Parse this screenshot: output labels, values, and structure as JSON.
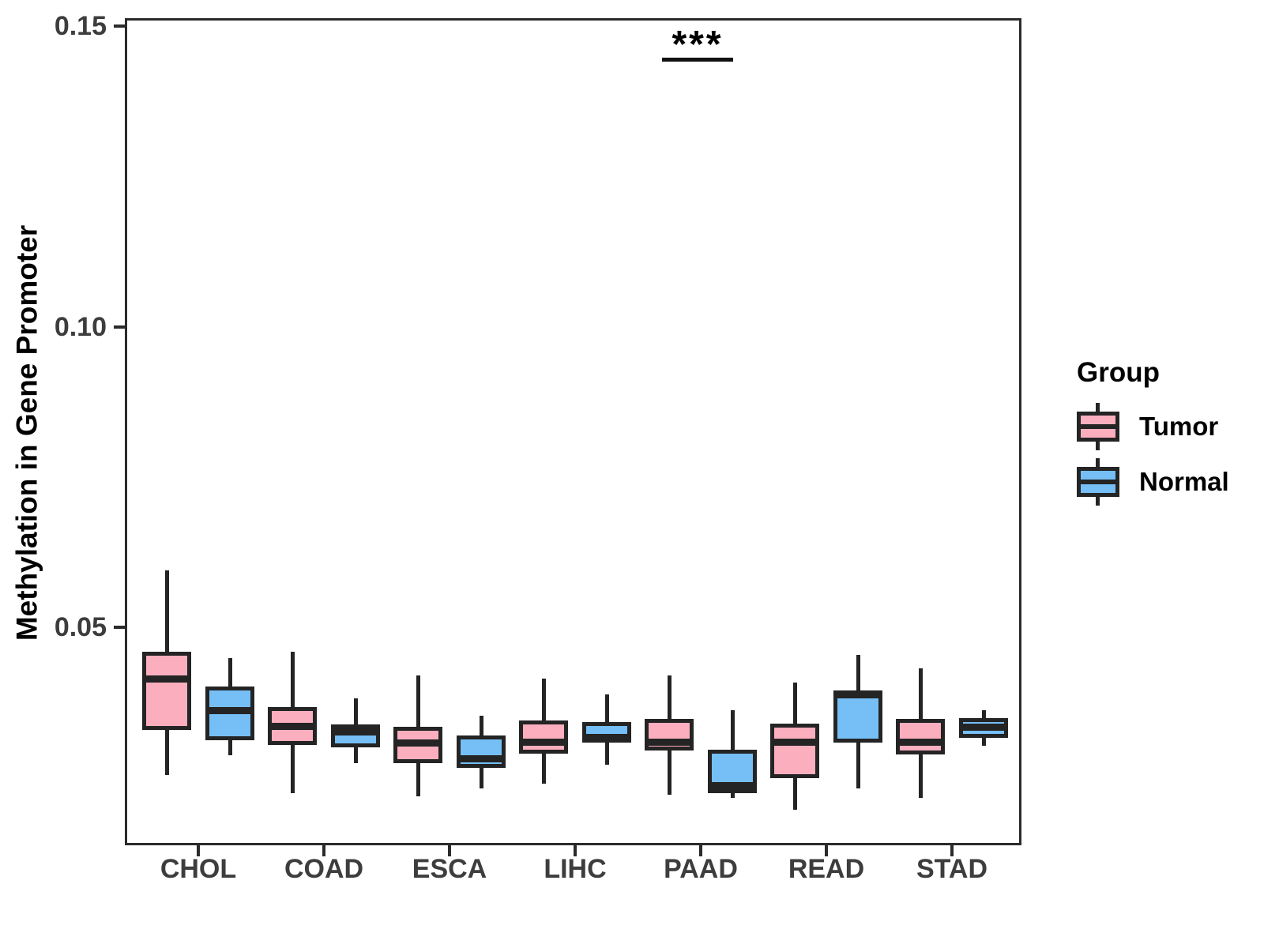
{
  "y_axis": {
    "title": "Methylation in Gene Promoter"
  },
  "legend": {
    "title": "Group",
    "items": [
      {
        "label": "Tumor",
        "color": "#FAAEBE"
      },
      {
        "label": "Normal",
        "color": "#75BEF6"
      }
    ]
  },
  "chart_data": {
    "type": "boxplot",
    "title": "",
    "xlabel": "",
    "ylabel": "Methylation in Gene Promoter",
    "categories": [
      "CHOL",
      "COAD",
      "ESCA",
      "LIHC",
      "PAAD",
      "READ",
      "STAD"
    ],
    "ylim": [
      0.0138,
      0.1513
    ],
    "yticks": [
      {
        "value": 0.05,
        "label": "0.05"
      },
      {
        "value": 0.1,
        "label": "0.10"
      },
      {
        "value": 0.15,
        "label": "0.15"
      }
    ],
    "grid": false,
    "legend_position": "right",
    "series": [
      {
        "name": "Tumor",
        "fill": "#FAAEBE",
        "boxes": [
          {
            "min": 0.0255,
            "q1": 0.033,
            "median": 0.0415,
            "q3": 0.046,
            "max": 0.0595
          },
          {
            "min": 0.0225,
            "q1": 0.0305,
            "median": 0.0335,
            "q3": 0.0368,
            "max": 0.046
          },
          {
            "min": 0.022,
            "q1": 0.0275,
            "median": 0.0308,
            "q3": 0.0335,
            "max": 0.042
          },
          {
            "min": 0.024,
            "q1": 0.029,
            "median": 0.031,
            "q3": 0.0345,
            "max": 0.0415
          },
          {
            "min": 0.0222,
            "q1": 0.0296,
            "median": 0.031,
            "q3": 0.0348,
            "max": 0.042
          },
          {
            "min": 0.0197,
            "q1": 0.025,
            "median": 0.031,
            "q3": 0.034,
            "max": 0.0408
          },
          {
            "min": 0.0217,
            "q1": 0.0289,
            "median": 0.031,
            "q3": 0.0348,
            "max": 0.0432
          }
        ]
      },
      {
        "name": "Normal",
        "fill": "#75BEF6",
        "boxes": [
          {
            "min": 0.0288,
            "q1": 0.0313,
            "median": 0.0362,
            "q3": 0.0402,
            "max": 0.0449
          },
          {
            "min": 0.0274,
            "q1": 0.0301,
            "median": 0.0326,
            "q3": 0.0339,
            "max": 0.0382
          },
          {
            "min": 0.0233,
            "q1": 0.0267,
            "median": 0.0282,
            "q3": 0.0321,
            "max": 0.0353
          },
          {
            "min": 0.0272,
            "q1": 0.0309,
            "median": 0.0317,
            "q3": 0.0343,
            "max": 0.0389
          },
          {
            "min": 0.0217,
            "q1": 0.0225,
            "median": 0.0237,
            "q3": 0.0297,
            "max": 0.0362
          },
          {
            "min": 0.0232,
            "q1": 0.0309,
            "median": 0.0388,
            "q3": 0.0396,
            "max": 0.0455
          },
          {
            "min": 0.0303,
            "q1": 0.0316,
            "median": 0.0334,
            "q3": 0.0349,
            "max": 0.0362
          }
        ]
      }
    ],
    "significance": {
      "category": "PAAD",
      "label": "***",
      "bar_y": 0.1447
    }
  }
}
